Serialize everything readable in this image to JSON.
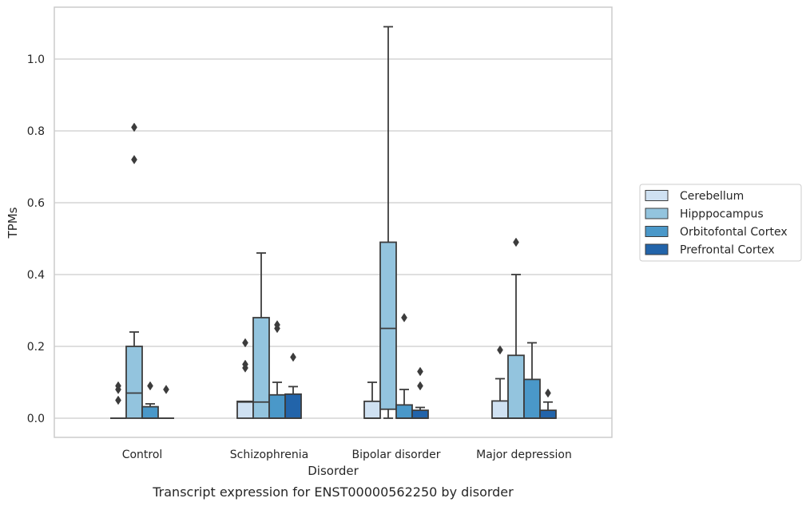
{
  "chart_data": {
    "type": "box",
    "title": "",
    "caption": "Transcript expression for ENST00000562250 by disorder",
    "xlabel": "Disorder",
    "ylabel": "TPMs",
    "ylim": [
      -0.05,
      1.15
    ],
    "yticks": [
      0.0,
      0.2,
      0.4,
      0.6,
      0.8,
      1.0
    ],
    "ytick_labels": [
      "0.0",
      "0.2",
      "0.4",
      "0.6",
      "0.8",
      "1.0"
    ],
    "grid": "horizontal",
    "legend_position": "right",
    "categories": [
      "Control",
      "Schizophrenia",
      "Bipolar disorder",
      "Major depression"
    ],
    "series": [
      {
        "name": "Cerebellum",
        "color": "#cfe1f2",
        "boxes": [
          {
            "q1": 0.0,
            "median": 0.0,
            "q3": 0.0,
            "whisker_low": 0.0,
            "whisker_high": 0.0,
            "outliers": [
              0.05,
              0.08,
              0.09
            ]
          },
          {
            "q1": 0.0,
            "median": 0.045,
            "q3": 0.047,
            "whisker_low": 0.0,
            "whisker_high": 0.047,
            "outliers": [
              0.14,
              0.15,
              0.21
            ]
          },
          {
            "q1": 0.0,
            "median": 0.0,
            "q3": 0.047,
            "whisker_low": 0.0,
            "whisker_high": 0.1,
            "outliers": []
          },
          {
            "q1": 0.0,
            "median": 0.0,
            "q3": 0.048,
            "whisker_low": 0.0,
            "whisker_high": 0.11,
            "outliers": [
              0.19
            ]
          }
        ]
      },
      {
        "name": "Hipppocampus",
        "color": "#93c4de",
        "boxes": [
          {
            "q1": 0.0,
            "median": 0.07,
            "q3": 0.2,
            "whisker_low": 0.0,
            "whisker_high": 0.24,
            "outliers": [
              0.72,
              0.81
            ]
          },
          {
            "q1": 0.0,
            "median": 0.045,
            "q3": 0.28,
            "whisker_low": 0.0,
            "whisker_high": 0.46,
            "outliers": []
          },
          {
            "q1": 0.025,
            "median": 0.25,
            "q3": 0.49,
            "whisker_low": 0.0,
            "whisker_high": 1.09,
            "outliers": []
          },
          {
            "q1": 0.0,
            "median": 0.0,
            "q3": 0.175,
            "whisker_low": 0.0,
            "whisker_high": 0.4,
            "outliers": [
              0.49
            ]
          }
        ]
      },
      {
        "name": "Orbitofontal Cortex",
        "color": "#4a98c9",
        "boxes": [
          {
            "q1": 0.0,
            "median": 0.0,
            "q3": 0.032,
            "whisker_low": 0.0,
            "whisker_high": 0.04,
            "outliers": [
              0.09
            ]
          },
          {
            "q1": 0.0,
            "median": 0.0,
            "q3": 0.065,
            "whisker_low": 0.0,
            "whisker_high": 0.1,
            "outliers": [
              0.25,
              0.26
            ]
          },
          {
            "q1": 0.0,
            "median": 0.0,
            "q3": 0.037,
            "whisker_low": 0.0,
            "whisker_high": 0.08,
            "outliers": [
              0.28
            ]
          },
          {
            "q1": 0.0,
            "median": 0.0,
            "q3": 0.108,
            "whisker_low": 0.0,
            "whisker_high": 0.21,
            "outliers": []
          }
        ]
      },
      {
        "name": "Prefrontal Cortex",
        "color": "#2264aa",
        "boxes": [
          {
            "q1": 0.0,
            "median": 0.0,
            "q3": 0.0,
            "whisker_low": 0.0,
            "whisker_high": 0.0,
            "outliers": [
              0.08
            ]
          },
          {
            "q1": 0.0,
            "median": 0.0,
            "q3": 0.067,
            "whisker_low": 0.0,
            "whisker_high": 0.088,
            "outliers": [
              0.17
            ]
          },
          {
            "q1": 0.0,
            "median": 0.0,
            "q3": 0.022,
            "whisker_low": 0.0,
            "whisker_high": 0.03,
            "outliers": [
              0.09,
              0.13
            ]
          },
          {
            "q1": 0.0,
            "median": 0.0,
            "q3": 0.022,
            "whisker_low": 0.0,
            "whisker_high": 0.045,
            "outliers": [
              0.07
            ]
          }
        ]
      }
    ]
  }
}
